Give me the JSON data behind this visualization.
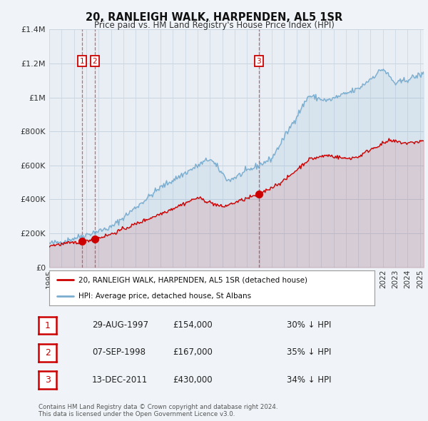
{
  "title": "20, RANLEIGH WALK, HARPENDEN, AL5 1SR",
  "subtitle": "Price paid vs. HM Land Registry's House Price Index (HPI)",
  "red_color": "#cc0000",
  "blue_color": "#7aadcf",
  "bg_color": "#f0f4f8",
  "plot_bg": "#e8eef4",
  "grid_color": "#c8d4e0",
  "vline_color": "#cc4444",
  "ylim": [
    0,
    1400000
  ],
  "yticks": [
    0,
    200000,
    400000,
    600000,
    800000,
    1000000,
    1200000,
    1400000
  ],
  "ytick_labels": [
    "£0",
    "£200K",
    "£400K",
    "£600K",
    "£800K",
    "£1M",
    "£1.2M",
    "£1.4M"
  ],
  "xlim_start": 1995.0,
  "xlim_end": 2025.3,
  "transactions": [
    {
      "date_year": 1997.66,
      "price": 154000,
      "label": "1"
    },
    {
      "date_year": 1998.69,
      "price": 167000,
      "label": "2"
    },
    {
      "date_year": 2011.96,
      "price": 430000,
      "label": "3"
    }
  ],
  "transaction_rows": [
    {
      "num": "1",
      "date": "29-AUG-1997",
      "price": "£154,000",
      "pct": "30% ↓ HPI"
    },
    {
      "num": "2",
      "date": "07-SEP-1998",
      "price": "£167,000",
      "pct": "35% ↓ HPI"
    },
    {
      "num": "3",
      "date": "13-DEC-2011",
      "price": "£430,000",
      "pct": "34% ↓ HPI"
    }
  ],
  "legend_red_label": "20, RANLEIGH WALK, HARPENDEN, AL5 1SR (detached house)",
  "legend_blue_label": "HPI: Average price, detached house, St Albans",
  "footer": "Contains HM Land Registry data © Crown copyright and database right 2024.\nThis data is licensed under the Open Government Licence v3.0.",
  "xtick_years": [
    1995,
    1996,
    1997,
    1998,
    1999,
    2000,
    2001,
    2002,
    2003,
    2004,
    2005,
    2006,
    2007,
    2008,
    2009,
    2010,
    2011,
    2012,
    2013,
    2014,
    2015,
    2016,
    2017,
    2018,
    2019,
    2020,
    2021,
    2022,
    2023,
    2024,
    2025
  ]
}
